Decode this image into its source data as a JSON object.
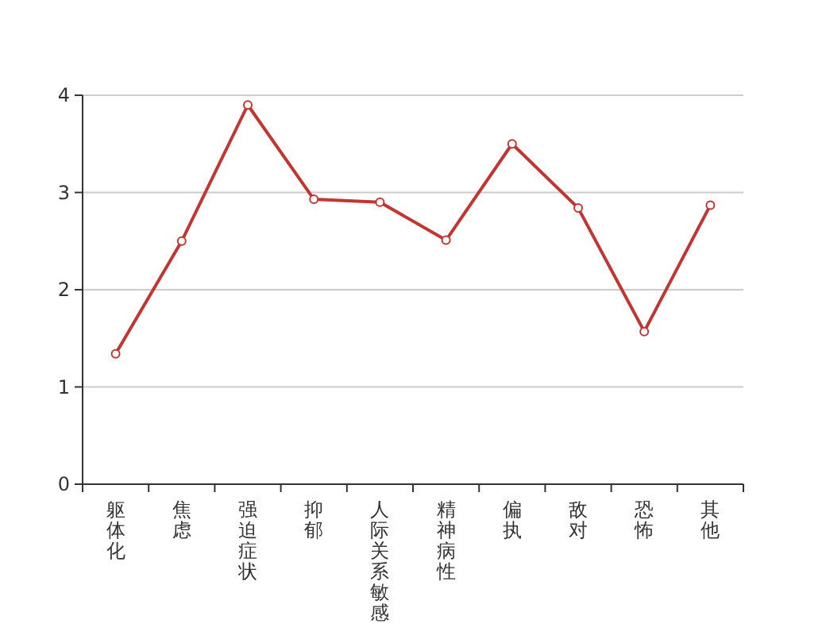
{
  "chart_data": {
    "type": "line",
    "categories": [
      "躯体化",
      "焦虑",
      "强迫症状",
      "抑郁",
      "人际关系敏感",
      "精神病性",
      "偏执",
      "敌对",
      "恐怖",
      "其他"
    ],
    "series": [
      {
        "color": "#c23531",
        "values": [
          1.34,
          2.5,
          3.9,
          2.93,
          2.9,
          2.51,
          3.5,
          2.84,
          1.57,
          2.87
        ]
      }
    ],
    "ylim": [
      0,
      4
    ],
    "yticks": [
      0,
      1,
      2,
      3,
      4
    ],
    "grid": "y",
    "marker": "circle",
    "line_style": "solid"
  }
}
